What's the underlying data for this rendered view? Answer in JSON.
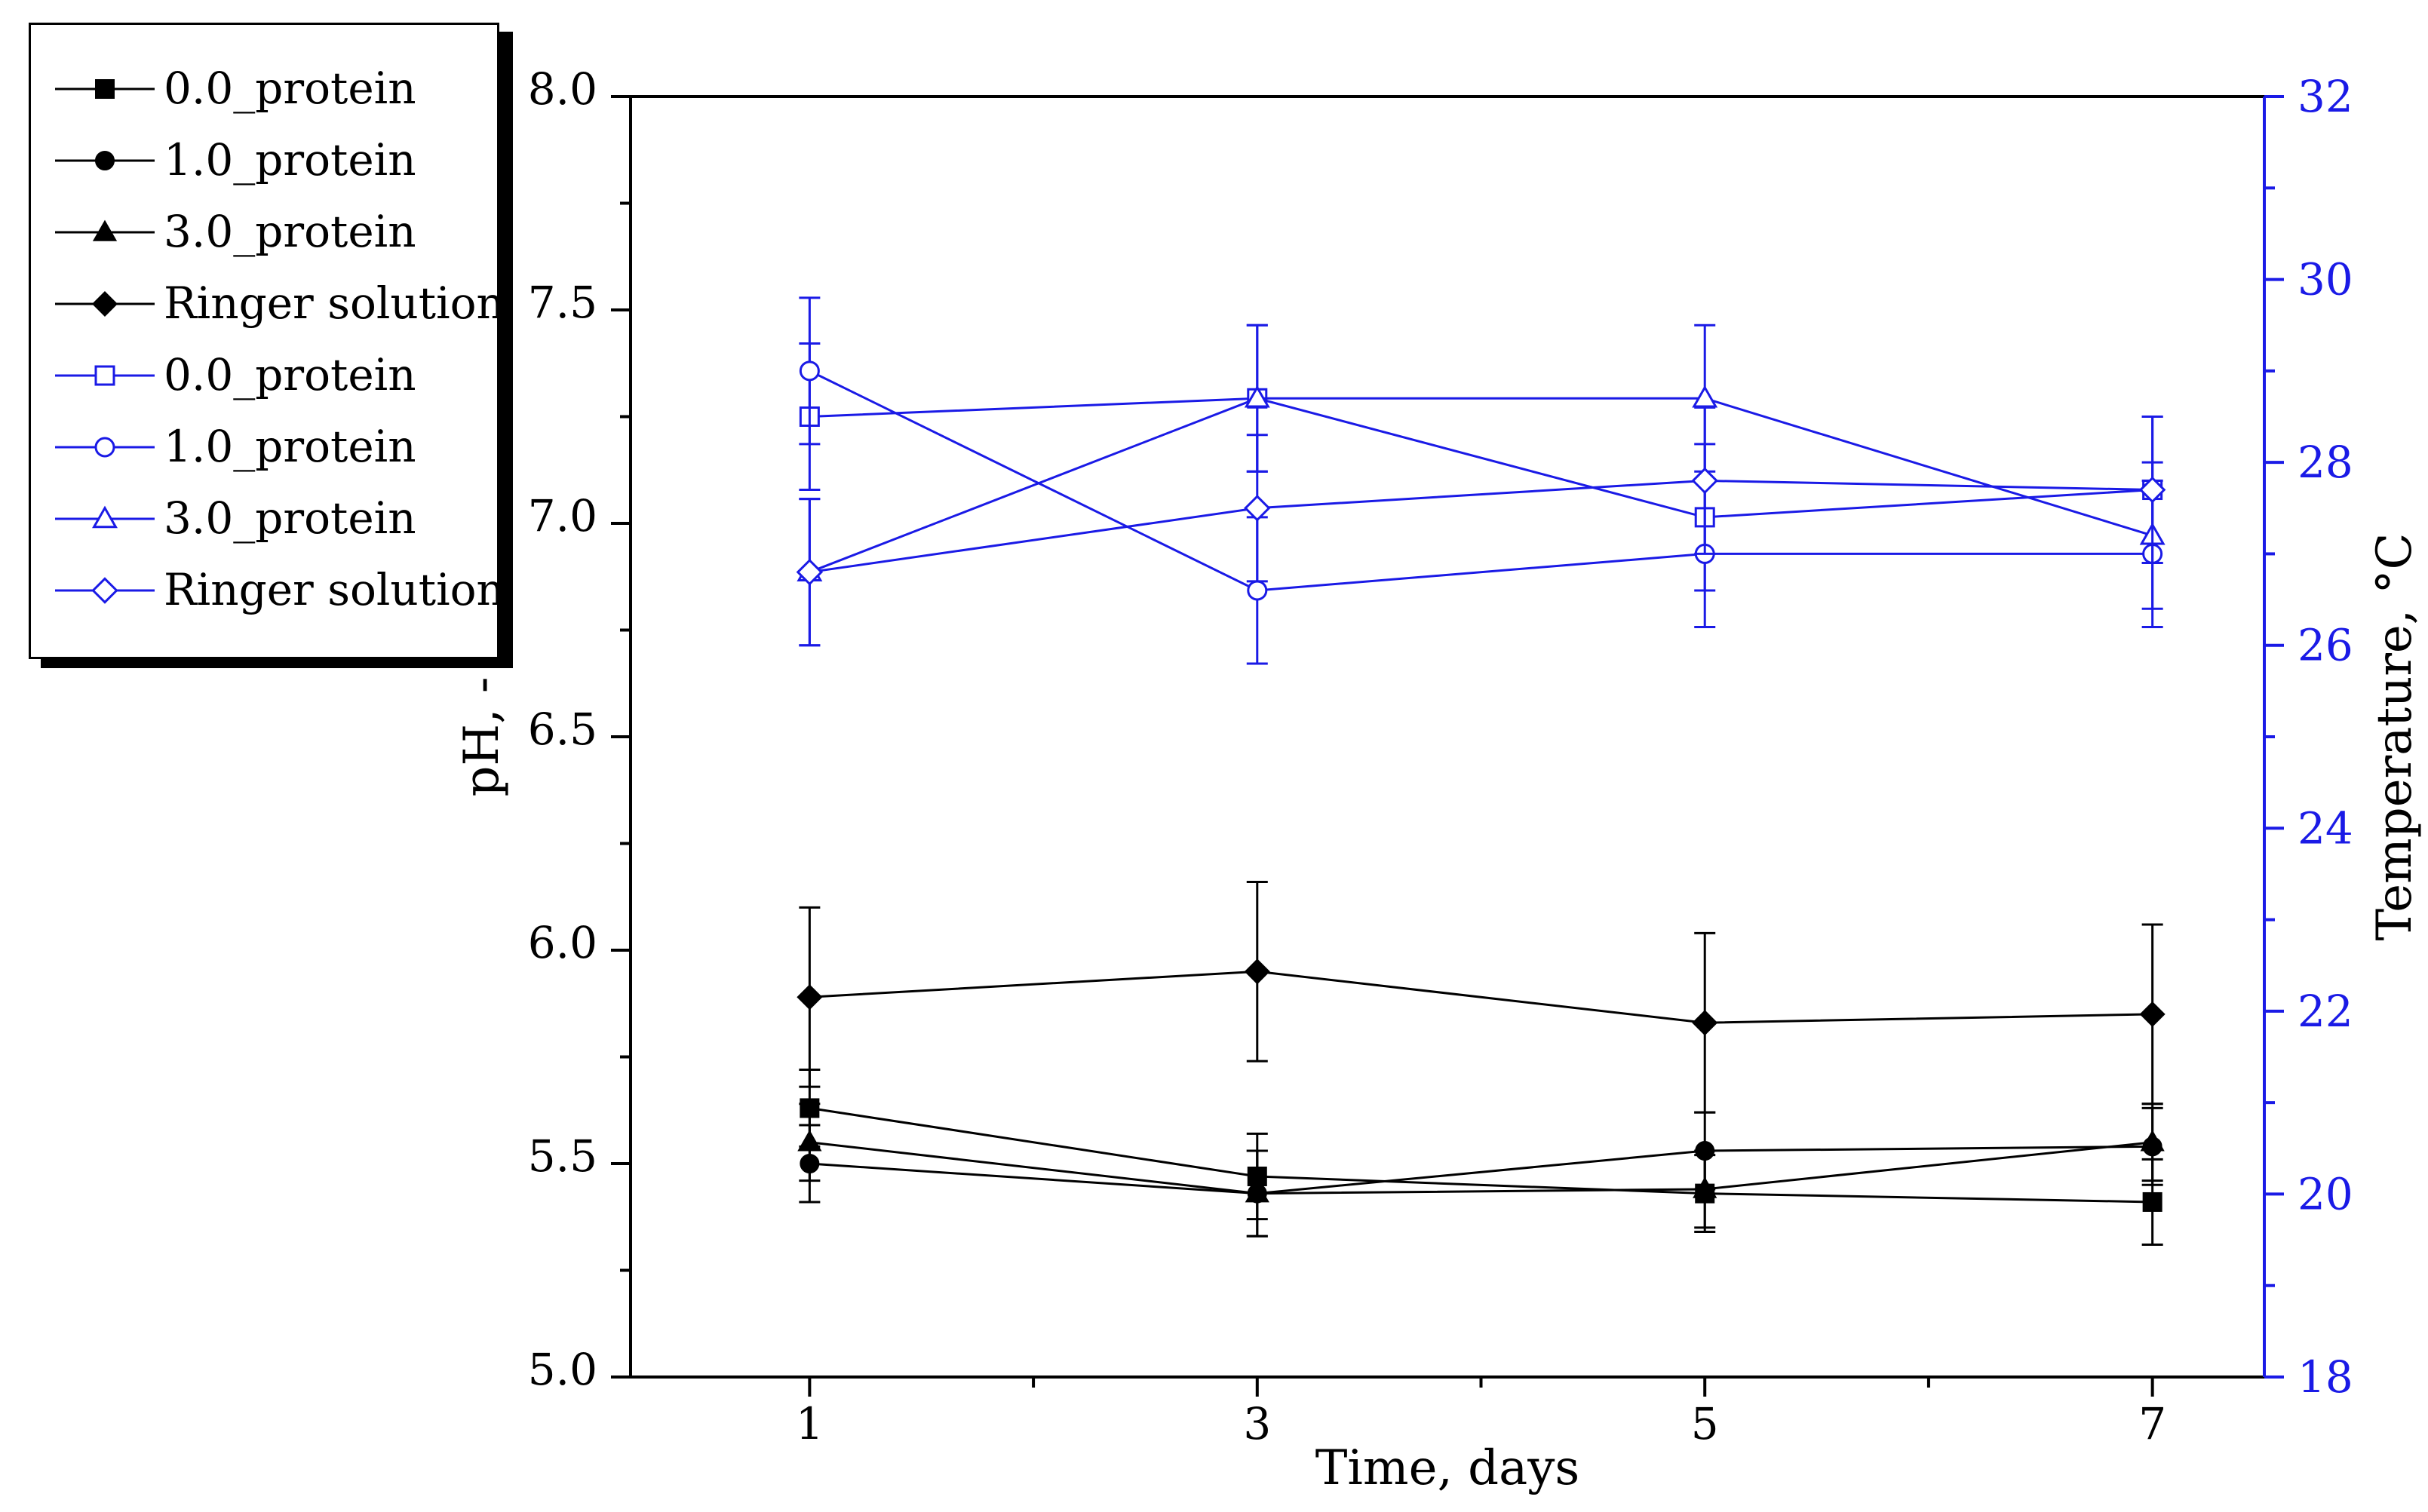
{
  "chart_data": {
    "type": "line",
    "title": "",
    "xlabel": "Time, days",
    "ylabel_left": "pH, -",
    "ylabel_right": "Temperature, °C",
    "x": [
      1,
      3,
      5,
      7
    ],
    "x_ticks": [
      "1",
      "3",
      "5",
      "7"
    ],
    "x_range": [
      0.2,
      7.5
    ],
    "y_left_range": [
      5.0,
      8.0
    ],
    "y_left_ticks": [
      "5.0",
      "5.5",
      "6.0",
      "6.5",
      "7.0",
      "7.5",
      "8.0"
    ],
    "y_right_range": [
      18,
      32
    ],
    "y_right_ticks": [
      "18",
      "20",
      "22",
      "24",
      "26",
      "28",
      "30",
      "32"
    ],
    "colors": {
      "ph": "#000000",
      "temperature": "#1a1ae6"
    },
    "series": [
      {
        "name": "0.0_protein",
        "axis": "left",
        "marker": "square",
        "filled": true,
        "values": [
          5.63,
          5.47,
          5.43,
          5.41
        ],
        "errors": [
          0.09,
          0.1,
          0.09,
          0.1
        ]
      },
      {
        "name": "1.0_protein",
        "axis": "left",
        "marker": "circle",
        "filled": true,
        "values": [
          5.5,
          5.43,
          5.53,
          5.54
        ],
        "errors": [
          0.09,
          0.1,
          0.09,
          0.09
        ]
      },
      {
        "name": "3.0_protein",
        "axis": "left",
        "marker": "triangle",
        "filled": true,
        "values": [
          5.55,
          5.43,
          5.44,
          5.55
        ],
        "errors": [
          0.09,
          0.1,
          0.09,
          0.09
        ]
      },
      {
        "name": "Ringer solution",
        "axis": "left",
        "marker": "diamond",
        "filled": true,
        "values": [
          5.89,
          5.95,
          5.83,
          5.85
        ],
        "errors": [
          0.21,
          0.21,
          0.21,
          0.21
        ]
      },
      {
        "name": "0.0_protein",
        "axis": "right",
        "marker": "square",
        "filled": false,
        "values": [
          28.5,
          28.7,
          27.4,
          27.7
        ],
        "errors": [
          0.8,
          0.8,
          0.8,
          0.8
        ]
      },
      {
        "name": "1.0_protein",
        "axis": "right",
        "marker": "circle",
        "filled": false,
        "values": [
          29.0,
          26.6,
          27.0,
          27.0
        ],
        "errors": [
          0.8,
          0.8,
          0.8,
          0.8
        ]
      },
      {
        "name": "3.0_protein",
        "axis": "right",
        "marker": "triangle",
        "filled": false,
        "values": [
          26.8,
          28.7,
          28.7,
          27.2
        ],
        "errors": [
          0.8,
          0.8,
          0.8,
          0.8
        ]
      },
      {
        "name": "Ringer solution",
        "axis": "right",
        "marker": "diamond",
        "filled": false,
        "values": [
          26.8,
          27.5,
          27.8,
          27.7
        ],
        "errors": [
          0.8,
          0.8,
          0.8,
          0.8
        ]
      }
    ],
    "legend_position": "top-left outside"
  }
}
